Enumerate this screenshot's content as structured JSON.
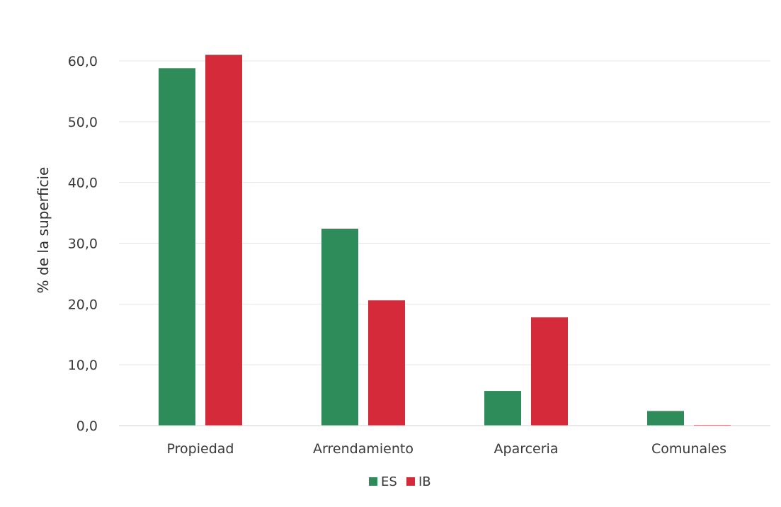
{
  "chart_data": {
    "type": "bar",
    "title": "",
    "xlabel": "",
    "ylabel": "% de la superficie",
    "categories": [
      "Propiedad",
      "Arrendamiento",
      "Aparceria",
      "Comunales"
    ],
    "series": [
      {
        "name": "ES",
        "color": "#2e8b5a",
        "values": [
          58.8,
          32.4,
          5.7,
          2.4
        ]
      },
      {
        "name": "IB",
        "color": "#d42a3a",
        "values": [
          61.0,
          20.6,
          17.8,
          0.1
        ]
      }
    ],
    "ylim": [
      0,
      60
    ],
    "yticks": [
      0,
      10,
      20,
      30,
      40,
      50,
      60
    ],
    "ytick_labels": [
      "0,0",
      "10,0",
      "20,0",
      "30,0",
      "40,0",
      "50,0",
      "60,0"
    ],
    "grid": true,
    "legend_position": "bottom-center"
  }
}
